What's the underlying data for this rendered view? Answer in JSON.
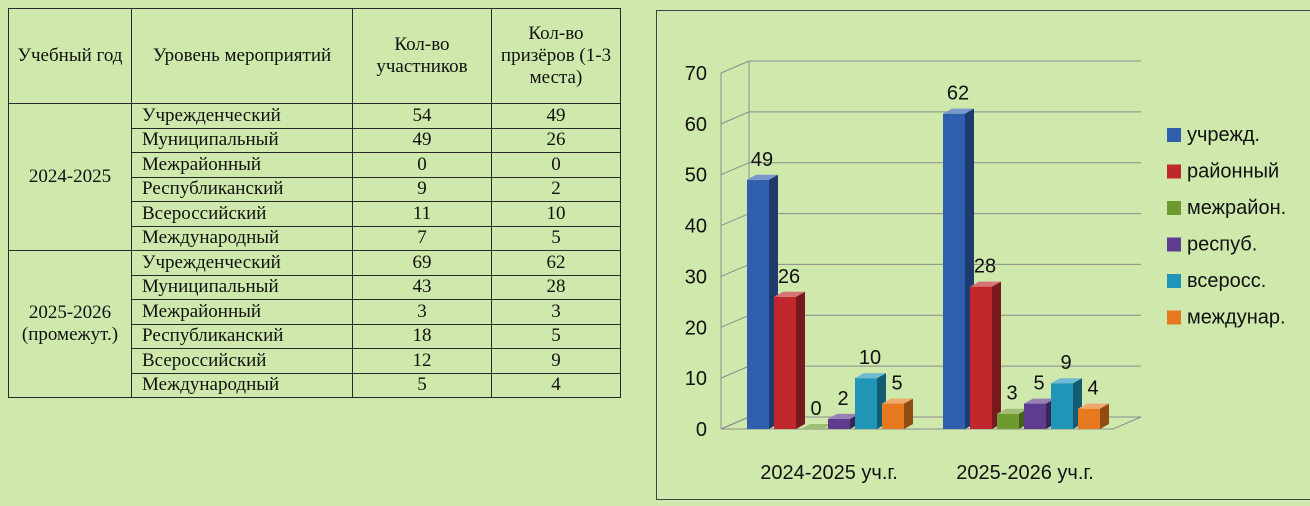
{
  "table": {
    "headers": [
      "Учебный год",
      "Уровень мероприятий",
      "Кол-во участников",
      "Кол-во призёров (1-3 места)"
    ],
    "years": [
      "2024-2025",
      "2025-2026 (промежут.)"
    ],
    "rows": [
      {
        "level": "Учрежденческий",
        "participants": "54",
        "winners": "49"
      },
      {
        "level": "Муниципальный",
        "participants": "49",
        "winners": "26"
      },
      {
        "level": "Межрайонный",
        "participants": "0",
        "winners": "0"
      },
      {
        "level": "Республиканский",
        "participants": "9",
        "winners": "2"
      },
      {
        "level": "Всероссийский",
        "participants": "11",
        "winners": "10"
      },
      {
        "level": "Международный",
        "participants": "7",
        "winners": "5"
      },
      {
        "level": "Учрежденческий",
        "participants": "69",
        "winners": "62"
      },
      {
        "level": "Муниципальный",
        "participants": "43",
        "winners": "28"
      },
      {
        "level": "Межрайонный",
        "participants": "3",
        "winners": "3"
      },
      {
        "level": "Республиканский",
        "participants": "18",
        "winners": "5"
      },
      {
        "level": "Всероссийский",
        "participants": "12",
        "winners": "9"
      },
      {
        "level": "Международный",
        "participants": "5",
        "winners": "4"
      }
    ]
  },
  "chart_data": {
    "type": "bar",
    "categories": [
      "2024-2025 уч.г.",
      "2025-2026 уч.г."
    ],
    "series": [
      {
        "name": "учрежд.",
        "values": [
          49,
          62
        ],
        "color": "#2f5fae"
      },
      {
        "name": "районный",
        "values": [
          26,
          28
        ],
        "color": "#c0282e"
      },
      {
        "name": "межрайон.",
        "values": [
          0,
          3
        ],
        "color": "#6e9a2e"
      },
      {
        "name": "респуб.",
        "values": [
          2,
          5
        ],
        "color": "#5e3c8f"
      },
      {
        "name": "всеросс.",
        "values": [
          10,
          9
        ],
        "color": "#1f95b8"
      },
      {
        "name": "междунар.",
        "values": [
          5,
          4
        ],
        "color": "#e77a1e"
      }
    ],
    "ylim": [
      0,
      70
    ],
    "yticks": [
      "0",
      "10",
      "20",
      "30",
      "40",
      "50",
      "60",
      "70"
    ],
    "legend_position": "right",
    "grid": true,
    "style": "3d clustered column"
  }
}
